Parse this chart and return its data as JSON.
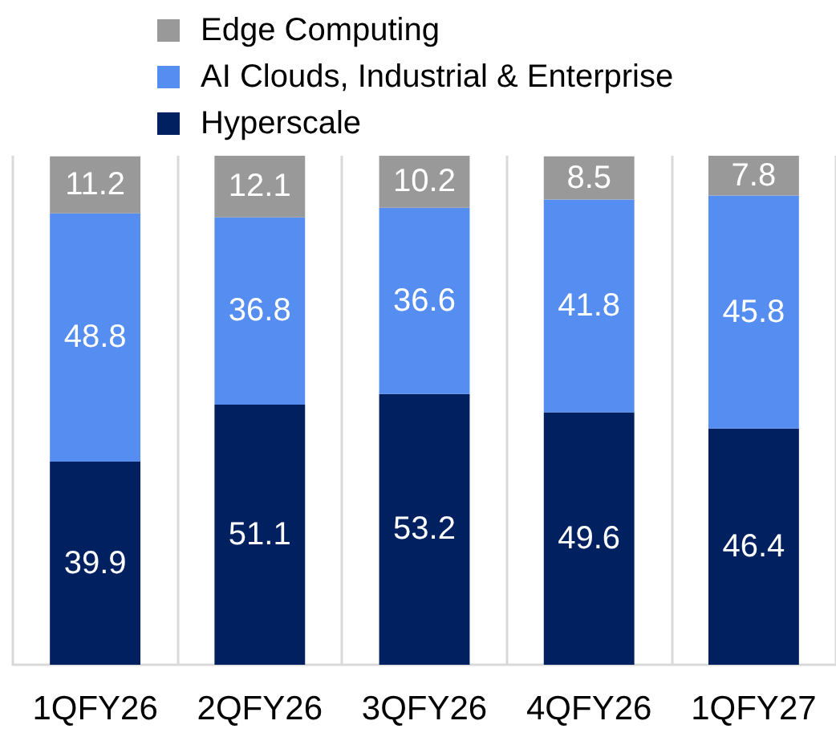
{
  "chart_data": {
    "type": "bar",
    "stacked": true,
    "categories": [
      "1QFY26",
      "2QFY26",
      "3QFY26",
      "4QFY26",
      "1QFY27"
    ],
    "series": [
      {
        "name": "Hyperscale",
        "color": "#002060",
        "values": [
          39.9,
          51.1,
          53.2,
          49.6,
          46.4
        ]
      },
      {
        "name": "AI Clouds, Industrial & Enterprise",
        "color": "#558ef0",
        "values": [
          48.8,
          36.8,
          36.6,
          41.8,
          45.8
        ]
      },
      {
        "name": "Edge Computing",
        "color": "#999999",
        "values": [
          11.2,
          12.1,
          10.2,
          8.5,
          7.8
        ]
      }
    ],
    "ylim": [
      0,
      100
    ],
    "tick_labels": "x",
    "grid": "x",
    "legend": "top",
    "data_labels": true
  }
}
